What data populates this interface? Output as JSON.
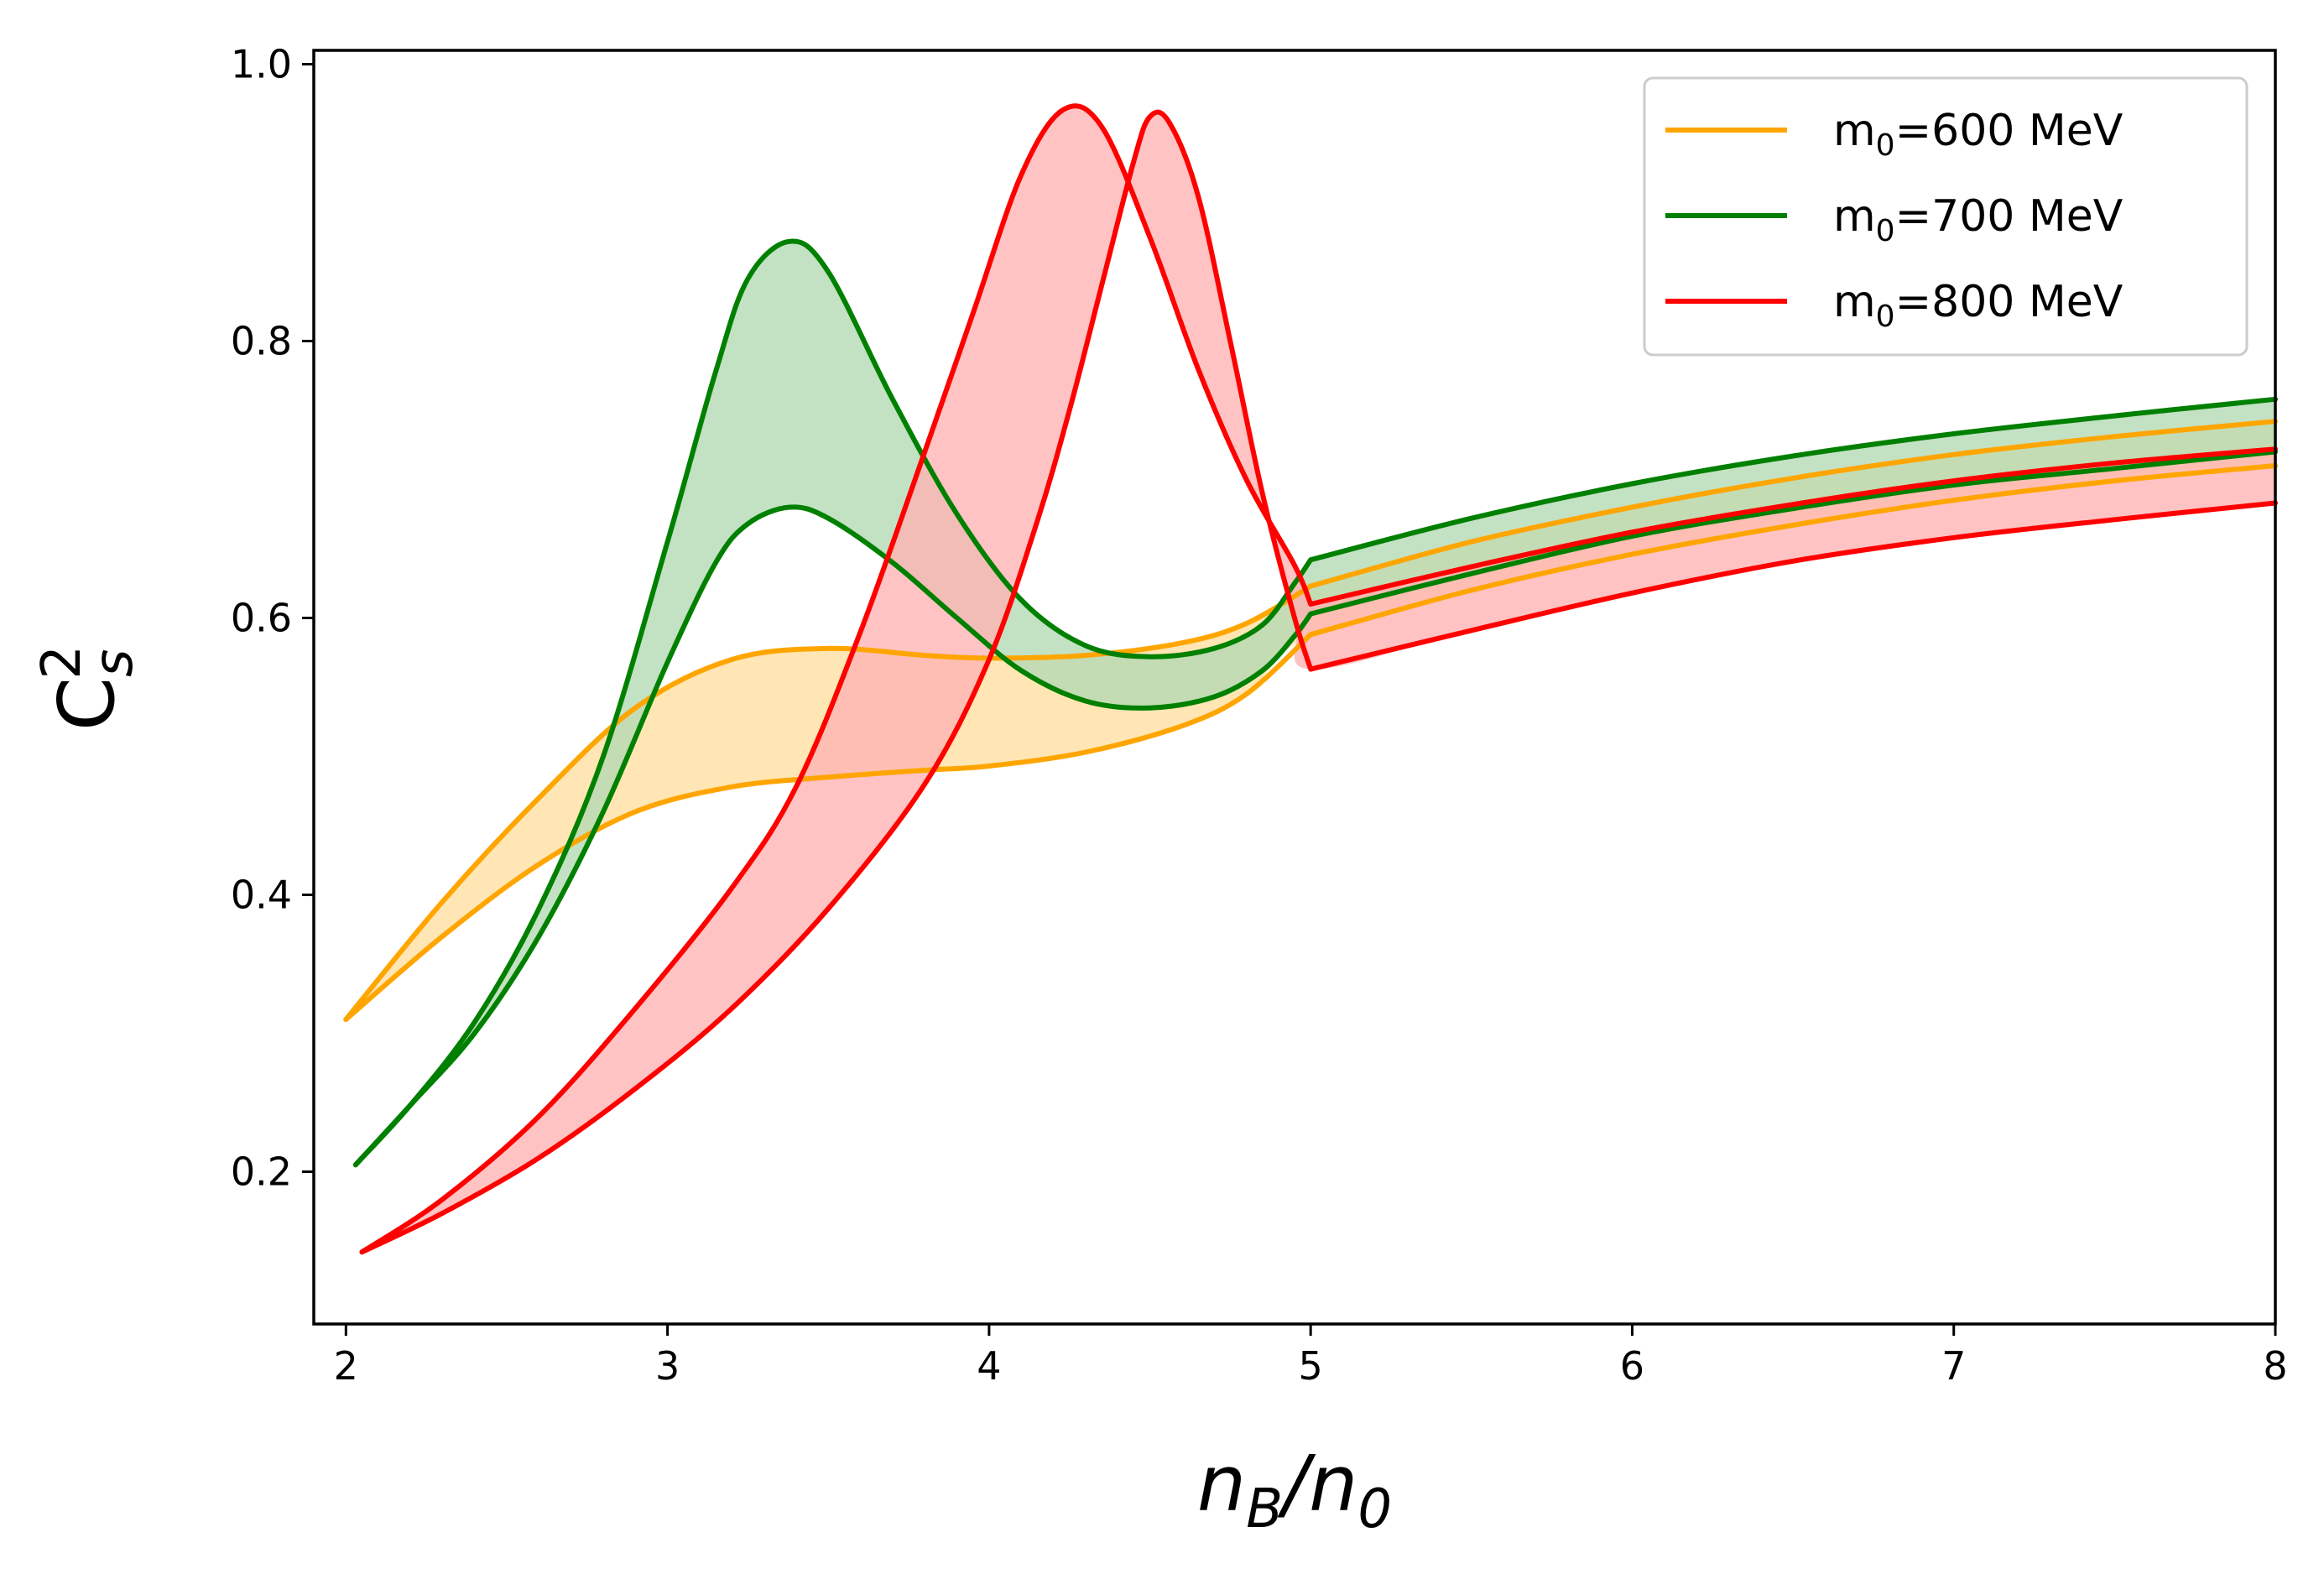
{
  "chart_data": {
    "type": "line",
    "title": "",
    "xlabel": {
      "main": "n",
      "sub1": "B",
      "slash": "/",
      "main2": "n",
      "sub2": "0"
    },
    "ylabel": {
      "main": "C",
      "sub": "s",
      "sup": "2"
    },
    "xlim": [
      1.9,
      8.0
    ],
    "ylim": [
      0.09,
      1.01
    ],
    "xticks": [
      2,
      3,
      4,
      5,
      6,
      7,
      8
    ],
    "yticks": [
      0.2,
      0.4,
      0.6,
      0.8,
      1.0
    ],
    "xtick_labels": [
      "2",
      "3",
      "4",
      "5",
      "6",
      "7",
      "8"
    ],
    "ytick_labels": [
      "0.2",
      "0.4",
      "0.6",
      "0.8",
      "1.0"
    ],
    "grid": false,
    "legend_position": "top-right",
    "series": [
      {
        "name": "m0=600 MeV",
        "legend_main": "m",
        "legend_sub": "0",
        "legend_rest": "=600 MeV",
        "color": "#ffa500",
        "fill": "#ffdf9f",
        "upper": [
          [
            2.0,
            0.31
          ],
          [
            2.3,
            0.395
          ],
          [
            2.6,
            0.47
          ],
          [
            2.9,
            0.535
          ],
          [
            3.2,
            0.57
          ],
          [
            3.5,
            0.578
          ],
          [
            3.8,
            0.573
          ],
          [
            4.0,
            0.571
          ],
          [
            4.3,
            0.573
          ],
          [
            4.6,
            0.582
          ],
          [
            4.8,
            0.596
          ],
          [
            5.0,
            0.623
          ],
          [
            5.5,
            0.655
          ],
          [
            6.0,
            0.68
          ],
          [
            6.5,
            0.701
          ],
          [
            7.0,
            0.718
          ],
          [
            7.5,
            0.731
          ],
          [
            8.0,
            0.742
          ]
        ],
        "lower": [
          [
            2.0,
            0.31
          ],
          [
            2.3,
            0.37
          ],
          [
            2.6,
            0.422
          ],
          [
            2.9,
            0.46
          ],
          [
            3.2,
            0.478
          ],
          [
            3.5,
            0.485
          ],
          [
            3.8,
            0.49
          ],
          [
            4.0,
            0.493
          ],
          [
            4.3,
            0.503
          ],
          [
            4.6,
            0.522
          ],
          [
            4.8,
            0.545
          ],
          [
            5.0,
            0.588
          ],
          [
            5.5,
            0.62
          ],
          [
            6.0,
            0.646
          ],
          [
            6.5,
            0.667
          ],
          [
            7.0,
            0.685
          ],
          [
            7.5,
            0.699
          ],
          [
            8.0,
            0.71
          ]
        ]
      },
      {
        "name": "m0=700 MeV",
        "legend_main": "m",
        "legend_sub": "0",
        "legend_rest": "=700 MeV",
        "color": "#008000",
        "fill": "#b2d8b2",
        "upper": [
          [
            2.03,
            0.205
          ],
          [
            2.2,
            0.248
          ],
          [
            2.4,
            0.308
          ],
          [
            2.6,
            0.39
          ],
          [
            2.8,
            0.5
          ],
          [
            3.0,
            0.655
          ],
          [
            3.15,
            0.778
          ],
          [
            3.25,
            0.845
          ],
          [
            3.38,
            0.872
          ],
          [
            3.5,
            0.85
          ],
          [
            3.7,
            0.758
          ],
          [
            3.9,
            0.675
          ],
          [
            4.1,
            0.613
          ],
          [
            4.3,
            0.58
          ],
          [
            4.5,
            0.572
          ],
          [
            4.7,
            0.578
          ],
          [
            4.85,
            0.595
          ],
          [
            4.95,
            0.625
          ],
          [
            5.0,
            0.642
          ],
          [
            5.5,
            0.672
          ],
          [
            6.0,
            0.697
          ],
          [
            6.5,
            0.717
          ],
          [
            7.0,
            0.733
          ],
          [
            7.5,
            0.746
          ],
          [
            8.0,
            0.758
          ]
        ],
        "lower": [
          [
            2.03,
            0.205
          ],
          [
            2.2,
            0.248
          ],
          [
            2.4,
            0.3
          ],
          [
            2.6,
            0.37
          ],
          [
            2.8,
            0.46
          ],
          [
            3.0,
            0.568
          ],
          [
            3.15,
            0.64
          ],
          [
            3.25,
            0.668
          ],
          [
            3.38,
            0.68
          ],
          [
            3.5,
            0.672
          ],
          [
            3.7,
            0.64
          ],
          [
            3.9,
            0.6
          ],
          [
            4.1,
            0.562
          ],
          [
            4.3,
            0.54
          ],
          [
            4.5,
            0.535
          ],
          [
            4.7,
            0.543
          ],
          [
            4.85,
            0.562
          ],
          [
            4.95,
            0.587
          ],
          [
            5.0,
            0.603
          ],
          [
            5.5,
            0.632
          ],
          [
            6.0,
            0.659
          ],
          [
            6.5,
            0.679
          ],
          [
            7.0,
            0.696
          ],
          [
            7.5,
            0.708
          ],
          [
            8.0,
            0.72
          ]
        ]
      },
      {
        "name": "m0=800 MeV",
        "legend_main": "m",
        "legend_sub": "0",
        "legend_rest": "=800 MeV",
        "color": "#ff0000",
        "fill": "#ffb2b2",
        "upper": [
          [
            2.05,
            0.142
          ],
          [
            2.3,
            0.18
          ],
          [
            2.6,
            0.24
          ],
          [
            2.9,
            0.318
          ],
          [
            3.2,
            0.405
          ],
          [
            3.4,
            0.478
          ],
          [
            3.6,
            0.59
          ],
          [
            3.8,
            0.72
          ],
          [
            3.95,
            0.82
          ],
          [
            4.1,
            0.92
          ],
          [
            4.23,
            0.967
          ],
          [
            4.35,
            0.955
          ],
          [
            4.5,
            0.875
          ],
          [
            4.65,
            0.78
          ],
          [
            4.8,
            0.7
          ],
          [
            4.95,
            0.638
          ],
          [
            5.0,
            0.61
          ],
          [
            5.5,
            0.637
          ],
          [
            6.0,
            0.662
          ],
          [
            6.5,
            0.682
          ],
          [
            7.0,
            0.699
          ],
          [
            7.5,
            0.712
          ],
          [
            8.0,
            0.722
          ]
        ],
        "lower": [
          [
            2.05,
            0.142
          ],
          [
            2.3,
            0.17
          ],
          [
            2.6,
            0.21
          ],
          [
            2.9,
            0.26
          ],
          [
            3.2,
            0.318
          ],
          [
            3.5,
            0.39
          ],
          [
            3.8,
            0.48
          ],
          [
            4.0,
            0.57
          ],
          [
            4.15,
            0.67
          ],
          [
            4.25,
            0.75
          ],
          [
            4.35,
            0.84
          ],
          [
            4.45,
            0.93
          ],
          [
            4.5,
            0.962
          ],
          [
            4.56,
            0.958
          ],
          [
            4.65,
            0.905
          ],
          [
            4.75,
            0.8
          ],
          [
            4.85,
            0.69
          ],
          [
            4.95,
            0.6
          ],
          [
            5.0,
            0.563
          ],
          [
            5.5,
            0.591
          ],
          [
            6.0,
            0.618
          ],
          [
            6.5,
            0.641
          ],
          [
            7.0,
            0.658
          ],
          [
            7.5,
            0.671
          ],
          [
            8.0,
            0.683
          ]
        ]
      }
    ]
  }
}
